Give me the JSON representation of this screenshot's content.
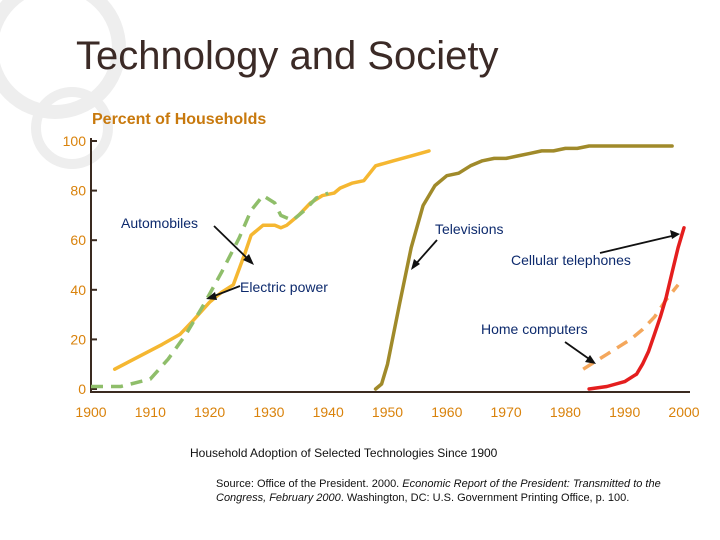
{
  "slide": {
    "title": "Technology and Society",
    "caption": "Household Adoption of Selected Technologies Since 1900",
    "source": {
      "prefix": "Source: Office of the President. 2000. ",
      "italic": "Economic Report of the President: Transmitted to the Congress, February 2000",
      "suffix": ". Washington, DC: U.S. Government Printing Office, p. 100."
    }
  },
  "colors": {
    "automobiles": "#f5b731",
    "electric_power": "#8fbe6a",
    "televisions": "#a08a2a",
    "home_computers": "#f4a75c",
    "cellular": "#e41e1e",
    "axis": "#3a2a20",
    "tick_label": "#d9820b",
    "annotation": "#0d2a6d"
  },
  "chart_data": {
    "type": "line",
    "title": "",
    "ylabel": "Percent of Households",
    "xlabel": "",
    "xlim": [
      1900,
      2000
    ],
    "ylim": [
      0,
      100
    ],
    "x_ticks": [
      1900,
      1910,
      1920,
      1930,
      1940,
      1950,
      1960,
      1970,
      1980,
      1990,
      2000
    ],
    "y_ticks": [
      0,
      20,
      40,
      60,
      80,
      100
    ],
    "series": [
      {
        "name": "Automobiles",
        "style": "solid",
        "points": [
          [
            1904,
            8
          ],
          [
            1908,
            13
          ],
          [
            1912,
            18
          ],
          [
            1915,
            22
          ],
          [
            1917,
            27
          ],
          [
            1920,
            35
          ],
          [
            1922,
            39
          ],
          [
            1924,
            42
          ],
          [
            1926,
            55
          ],
          [
            1927,
            62
          ],
          [
            1928,
            64
          ],
          [
            1929,
            66
          ],
          [
            1931,
            66
          ],
          [
            1932,
            65
          ],
          [
            1933,
            66
          ],
          [
            1935,
            70
          ],
          [
            1937,
            75
          ],
          [
            1939,
            78
          ],
          [
            1941,
            79
          ],
          [
            1942,
            81
          ],
          [
            1944,
            83
          ],
          [
            1946,
            84
          ],
          [
            1948,
            90
          ],
          [
            1951,
            92
          ],
          [
            1954,
            94
          ],
          [
            1957,
            96
          ]
        ]
      },
      {
        "name": "Electric power",
        "style": "dashed",
        "points": [
          [
            1900,
            1
          ],
          [
            1905,
            1
          ],
          [
            1910,
            4
          ],
          [
            1913,
            12
          ],
          [
            1916,
            22
          ],
          [
            1919,
            34
          ],
          [
            1922,
            47
          ],
          [
            1925,
            61
          ],
          [
            1927,
            72
          ],
          [
            1929,
            78
          ],
          [
            1931,
            75
          ],
          [
            1932,
            70
          ],
          [
            1934,
            68
          ],
          [
            1936,
            72
          ],
          [
            1938,
            77
          ],
          [
            1940,
            79
          ]
        ]
      },
      {
        "name": "Televisions",
        "style": "solid",
        "points": [
          [
            1948,
            0
          ],
          [
            1949,
            2
          ],
          [
            1950,
            10
          ],
          [
            1952,
            34
          ],
          [
            1954,
            57
          ],
          [
            1956,
            74
          ],
          [
            1958,
            82
          ],
          [
            1960,
            86
          ],
          [
            1962,
            87
          ],
          [
            1964,
            90
          ],
          [
            1966,
            92
          ],
          [
            1968,
            93
          ],
          [
            1970,
            93
          ],
          [
            1972,
            94
          ],
          [
            1974,
            95
          ],
          [
            1976,
            96
          ],
          [
            1978,
            96
          ],
          [
            1980,
            97
          ],
          [
            1982,
            97
          ],
          [
            1984,
            98
          ],
          [
            1986,
            98
          ],
          [
            1988,
            98
          ],
          [
            1990,
            98
          ],
          [
            1992,
            98
          ],
          [
            1994,
            98
          ],
          [
            1996,
            98
          ],
          [
            1998,
            98
          ]
        ]
      },
      {
        "name": "Home computers",
        "style": "dashed",
        "points": [
          [
            1983,
            8
          ],
          [
            1985,
            11
          ],
          [
            1987,
            14
          ],
          [
            1989,
            17
          ],
          [
            1991,
            20
          ],
          [
            1993,
            24
          ],
          [
            1995,
            29
          ],
          [
            1997,
            36
          ],
          [
            1999,
            42
          ]
        ]
      },
      {
        "name": "Cellular telephones",
        "style": "solid",
        "points": [
          [
            1984,
            0
          ],
          [
            1987,
            1
          ],
          [
            1990,
            3
          ],
          [
            1992,
            6
          ],
          [
            1993,
            10
          ],
          [
            1994,
            15
          ],
          [
            1995,
            22
          ],
          [
            1996,
            29
          ],
          [
            1997,
            37
          ],
          [
            1998,
            47
          ],
          [
            1999,
            57
          ],
          [
            2000,
            65
          ]
        ]
      }
    ],
    "annotations": [
      {
        "text": "Automobiles",
        "target": "Electric power"
      },
      {
        "text": "Electric power",
        "target": "Automobiles"
      },
      {
        "text": "Televisions",
        "target": "Televisions"
      },
      {
        "text": "Cellular telephones",
        "target": "Cellular telephones"
      },
      {
        "text": "Home computers",
        "target": "Home computers"
      }
    ]
  }
}
